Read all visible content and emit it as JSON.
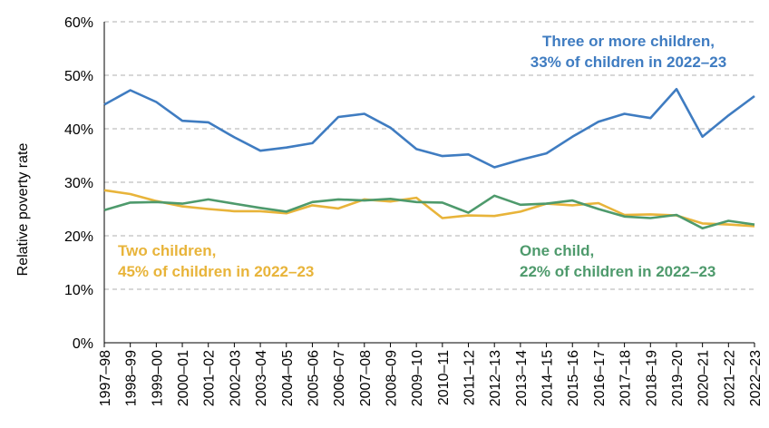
{
  "chart_data": {
    "type": "line",
    "ylabel": "Relative poverty rate",
    "ylim": [
      0,
      60
    ],
    "yticks": [
      0,
      10,
      20,
      30,
      40,
      50,
      60
    ],
    "ytick_labels": [
      "0%",
      "10%",
      "20%",
      "30%",
      "40%",
      "50%",
      "60%"
    ],
    "grid": "horizontal dashed",
    "categories": [
      "1997–98",
      "1998–99",
      "1999–00",
      "2000–01",
      "2001–02",
      "2002–03",
      "2003–04",
      "2004–05",
      "2005–06",
      "2006–07",
      "2007–08",
      "2008–09",
      "2009–10",
      "2010–11",
      "2011–12",
      "2012–13",
      "2013–14",
      "2014–15",
      "2015–16",
      "2016–17",
      "2017–18",
      "2018–19",
      "2019–20",
      "2020–21",
      "2021–22",
      "2022–23"
    ],
    "series": [
      {
        "name": "Three or more children",
        "color": "#3F7CC1",
        "annotation": [
          "Three or more children,",
          "33% of children in 2022–23"
        ],
        "values": [
          44.5,
          47.2,
          45.0,
          41.5,
          41.2,
          38.4,
          35.9,
          36.5,
          37.3,
          42.2,
          42.8,
          40.2,
          36.2,
          34.9,
          35.2,
          32.8,
          34.2,
          35.4,
          38.5,
          41.3,
          42.8,
          42.0,
          47.4,
          38.5,
          42.5,
          46.1
        ]
      },
      {
        "name": "Two children",
        "color": "#E8B43A",
        "annotation": [
          "Two children,",
          "45% of children in 2022–23"
        ],
        "values": [
          28.5,
          27.8,
          26.5,
          25.5,
          25.0,
          24.6,
          24.6,
          24.2,
          25.7,
          25.1,
          26.8,
          26.4,
          27.1,
          23.3,
          23.8,
          23.7,
          24.5,
          26.0,
          25.7,
          26.1,
          23.9,
          24.0,
          23.8,
          22.3,
          22.1,
          21.8
        ]
      },
      {
        "name": "One child",
        "color": "#4E9A6C",
        "annotation": [
          "One child,",
          "22% of children in 2022–23"
        ],
        "values": [
          24.8,
          26.2,
          26.3,
          26.0,
          26.8,
          26.0,
          25.2,
          24.5,
          26.3,
          26.8,
          26.6,
          26.9,
          26.3,
          26.2,
          24.3,
          27.5,
          25.8,
          26.0,
          26.6,
          25.0,
          23.6,
          23.3,
          23.9,
          21.4,
          22.8,
          22.1
        ]
      }
    ]
  }
}
